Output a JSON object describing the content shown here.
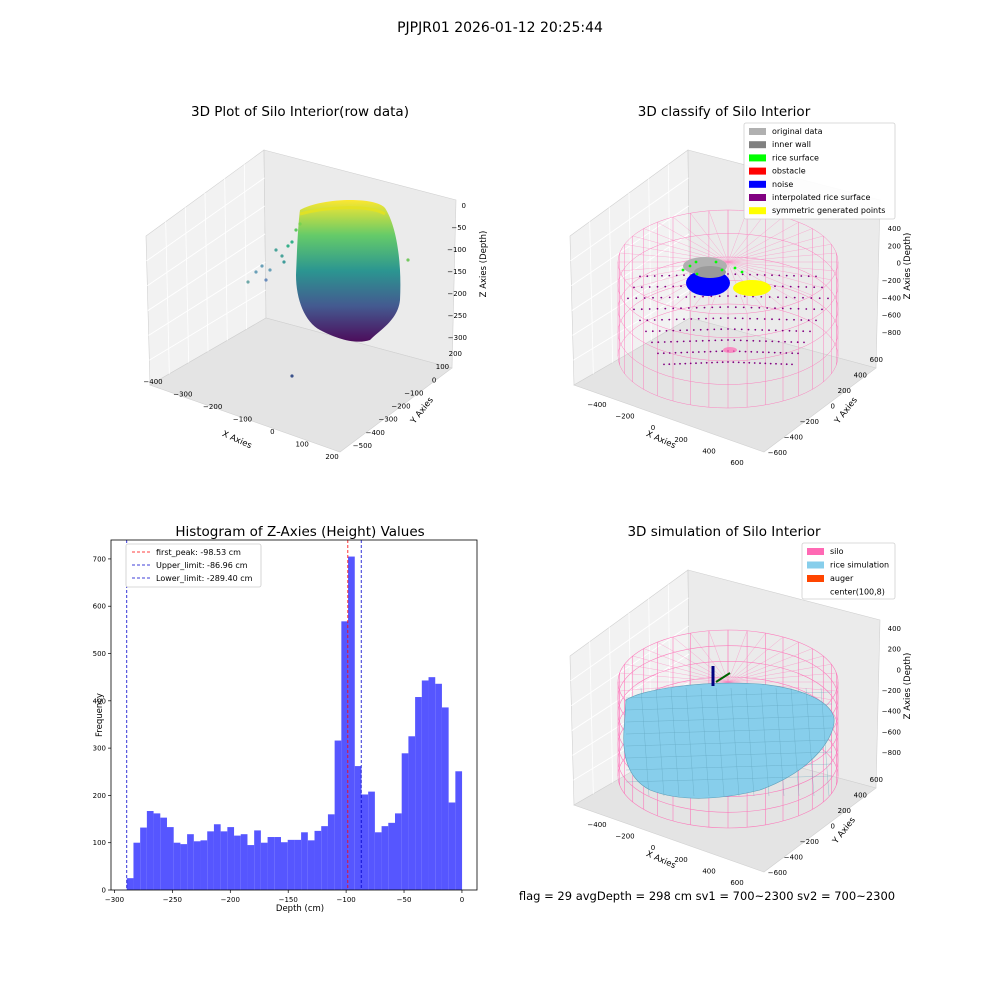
{
  "suptitle": "PJPJR01 2026-01-12 20:25:44",
  "colors": {
    "histogram_bar": "#4d4dff",
    "first_peak_line": "#ff0000",
    "limit_lines": "#0000cc",
    "silo_wire": "#ff69b4",
    "rice_simulation": "#87ceeb",
    "auger": "#ff4500"
  },
  "panels": {
    "raw": {
      "title": "3D Plot of Silo Interior(row data)",
      "xlabel": "X Axies",
      "ylabel": "Y Axies",
      "zlabel": "Z Axies (Depth)",
      "xticks": [
        "−400",
        "−300",
        "−200",
        "−100",
        "0",
        "100",
        "200"
      ],
      "yticks": [
        "200",
        "100",
        "0",
        "−100",
        "−200",
        "−300",
        "−400",
        "−500"
      ],
      "zticks": [
        "0",
        "−50",
        "−100",
        "−150",
        "−200",
        "−250",
        "−300"
      ],
      "colormap": "viridis"
    },
    "classify": {
      "title": "3D classify of Silo Interior",
      "xlabel": "X Axies",
      "ylabel": "Y Axies",
      "zlabel": "Z Axies (Depth)",
      "xticks": [
        "−400",
        "−200",
        "0",
        "200",
        "400",
        "600"
      ],
      "yticks": [
        "600",
        "400",
        "200",
        "0",
        "−200",
        "−400",
        "−600"
      ],
      "zticks": [
        "400",
        "200",
        "0",
        "−200",
        "−400",
        "−600",
        "−800"
      ],
      "legend": [
        {
          "label": "original data",
          "color": "#b0b0b0"
        },
        {
          "label": "inner wall",
          "color": "#808080"
        },
        {
          "label": "rice surface",
          "color": "#00ff00"
        },
        {
          "label": "obstacle",
          "color": "#ff0000"
        },
        {
          "label": "noise",
          "color": "#0000ff"
        },
        {
          "label": "interpolated rice surface",
          "color": "#800080"
        },
        {
          "label": "symmetric generated points",
          "color": "#ffff00"
        }
      ]
    },
    "simulation": {
      "title": "3D simulation of Silo Interior",
      "xlabel": "X Axies",
      "ylabel": "Y Axies",
      "zlabel": "Z Axies (Depth)",
      "xticks": [
        "−400",
        "−200",
        "0",
        "200",
        "400",
        "600"
      ],
      "yticks": [
        "600",
        "400",
        "200",
        "0",
        "−200",
        "−400",
        "−600"
      ],
      "zticks": [
        "400",
        "200",
        "0",
        "−200",
        "−400",
        "−600",
        "−800"
      ],
      "legend": [
        {
          "label": "silo",
          "color": "#ff69b4"
        },
        {
          "label": "rice simulation",
          "color": "#87ceeb"
        },
        {
          "label": "auger",
          "color": "#ff4500"
        },
        {
          "label": "center(100,8)",
          "color": "#ffffff"
        }
      ]
    }
  },
  "chart_data": {
    "type": "bar",
    "title": "Histogram of Z-Axies (Height) Values",
    "xlabel": "Depth (cm)",
    "ylabel": "Frequency",
    "xlim": [
      -303,
      13
    ],
    "ylim": [
      0,
      740
    ],
    "xticks": [
      -300,
      -250,
      -200,
      -150,
      -100,
      -50,
      0
    ],
    "yticks": [
      0,
      100,
      200,
      300,
      400,
      500,
      600,
      700
    ],
    "bin_start": -289.4,
    "bin_width": 5.79,
    "values": [
      25,
      100,
      132,
      167,
      162,
      153,
      133,
      100,
      97,
      118,
      103,
      105,
      124,
      139,
      124,
      133,
      115,
      118,
      95,
      126,
      100,
      112,
      112,
      101,
      106,
      106,
      122,
      105,
      125,
      135,
      160,
      316,
      568,
      705,
      262,
      202,
      208,
      122,
      135,
      142,
      162,
      289,
      325,
      408,
      443,
      450,
      436,
      386,
      185,
      251
    ],
    "lines": [
      {
        "label": "first_peak: -98.53 cm",
        "x": -98.53,
        "color": "#ff0000"
      },
      {
        "label": "Upper_limit: -86.96 cm",
        "x": -86.96,
        "color": "#0000cc"
      },
      {
        "label": "Lower_limit: -289.40 cm",
        "x": -289.4,
        "color": "#0000cc"
      }
    ],
    "grid": false,
    "legend_position": "top-left"
  },
  "footer": {
    "status": "flag = 29  avgDepth = 298 cm  sv1 = 700~2300  sv2 = 700~2300"
  }
}
